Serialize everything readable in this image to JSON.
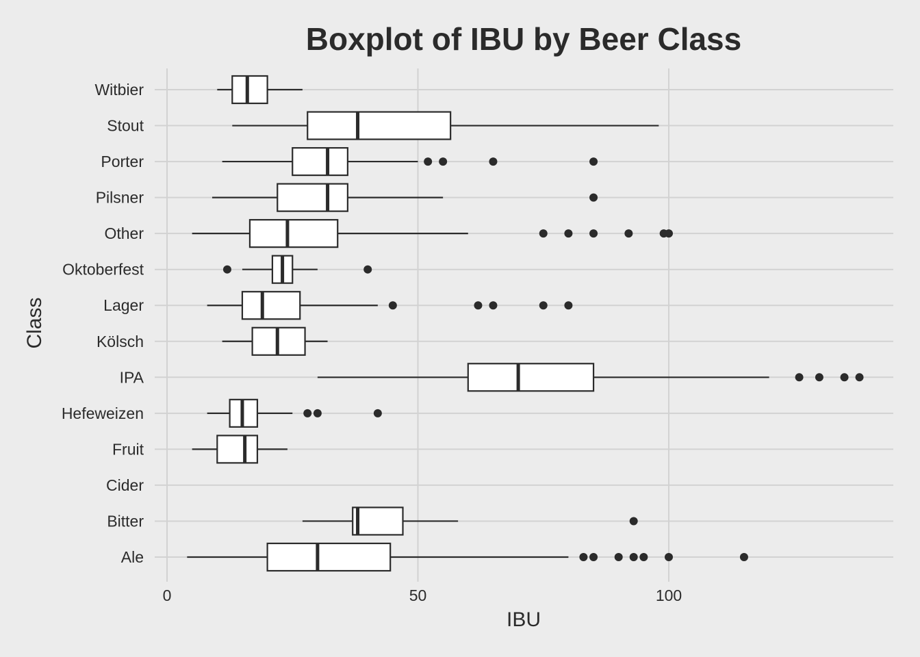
{
  "chart_data": {
    "type": "boxplot",
    "orientation": "horizontal",
    "title": "Boxplot of IBU by Beer Class",
    "xlabel": "IBU",
    "ylabel": "Class",
    "xlim": [
      0,
      145
    ],
    "xticks": [
      0,
      50,
      100
    ],
    "grid": true,
    "colors": {
      "background": "#ececec",
      "grid": "#d2d2d2",
      "box_fill": "#ffffff",
      "stroke": "#2b2b2b"
    },
    "categories": [
      "Ale",
      "Bitter",
      "Cider",
      "Fruit",
      "Hefeweizen",
      "IPA",
      "Kölsch",
      "Lager",
      "Oktoberfest",
      "Other",
      "Pilsner",
      "Porter",
      "Stout",
      "Witbier"
    ],
    "boxes": [
      {
        "category": "Ale",
        "whisker_low": 4,
        "q1": 20,
        "median": 30,
        "q3": 44.5,
        "whisker_high": 80,
        "outliers": [
          83,
          85,
          90,
          93,
          95,
          100,
          115
        ]
      },
      {
        "category": "Bitter",
        "whisker_low": 27,
        "q1": 37,
        "median": 38,
        "q3": 47,
        "whisker_high": 58,
        "outliers": [
          93
        ]
      },
      {
        "category": "Cider",
        "whisker_low": null,
        "q1": null,
        "median": null,
        "q3": null,
        "whisker_high": null,
        "outliers": []
      },
      {
        "category": "Fruit",
        "whisker_low": 5,
        "q1": 10,
        "median": 15.5,
        "q3": 18,
        "whisker_high": 24,
        "outliers": []
      },
      {
        "category": "Hefeweizen",
        "whisker_low": 8,
        "q1": 12.5,
        "median": 15,
        "q3": 18,
        "whisker_high": 25,
        "outliers": [
          28,
          30,
          42
        ]
      },
      {
        "category": "IPA",
        "whisker_low": 30,
        "q1": 60,
        "median": 70,
        "q3": 85,
        "whisker_high": 120,
        "outliers": [
          126,
          130,
          135,
          138
        ]
      },
      {
        "category": "Kölsch",
        "whisker_low": 11,
        "q1": 17,
        "median": 22,
        "q3": 27.5,
        "whisker_high": 32,
        "outliers": []
      },
      {
        "category": "Lager",
        "whisker_low": 8,
        "q1": 15,
        "median": 19,
        "q3": 26.5,
        "whisker_high": 42,
        "outliers": [
          45,
          62,
          65,
          75,
          80
        ]
      },
      {
        "category": "Oktoberfest",
        "whisker_low": 15,
        "q1": 21,
        "median": 23,
        "q3": 25,
        "whisker_high": 30,
        "outliers": [
          12,
          40
        ]
      },
      {
        "category": "Other",
        "whisker_low": 5,
        "q1": 16.5,
        "median": 24,
        "q3": 34,
        "whisker_high": 60,
        "outliers": [
          75,
          80,
          85,
          92,
          99,
          100
        ]
      },
      {
        "category": "Pilsner",
        "whisker_low": 9,
        "q1": 22,
        "median": 32,
        "q3": 36,
        "whisker_high": 55,
        "outliers": [
          85
        ]
      },
      {
        "category": "Porter",
        "whisker_low": 11,
        "q1": 25,
        "median": 32,
        "q3": 36,
        "whisker_high": 50,
        "outliers": [
          52,
          55,
          65,
          85
        ]
      },
      {
        "category": "Stout",
        "whisker_low": 13,
        "q1": 28,
        "median": 38,
        "q3": 56.5,
        "whisker_high": 98,
        "outliers": []
      },
      {
        "category": "Witbier",
        "whisker_low": 10,
        "q1": 13,
        "median": 16,
        "q3": 20,
        "whisker_high": 27,
        "outliers": []
      }
    ]
  }
}
